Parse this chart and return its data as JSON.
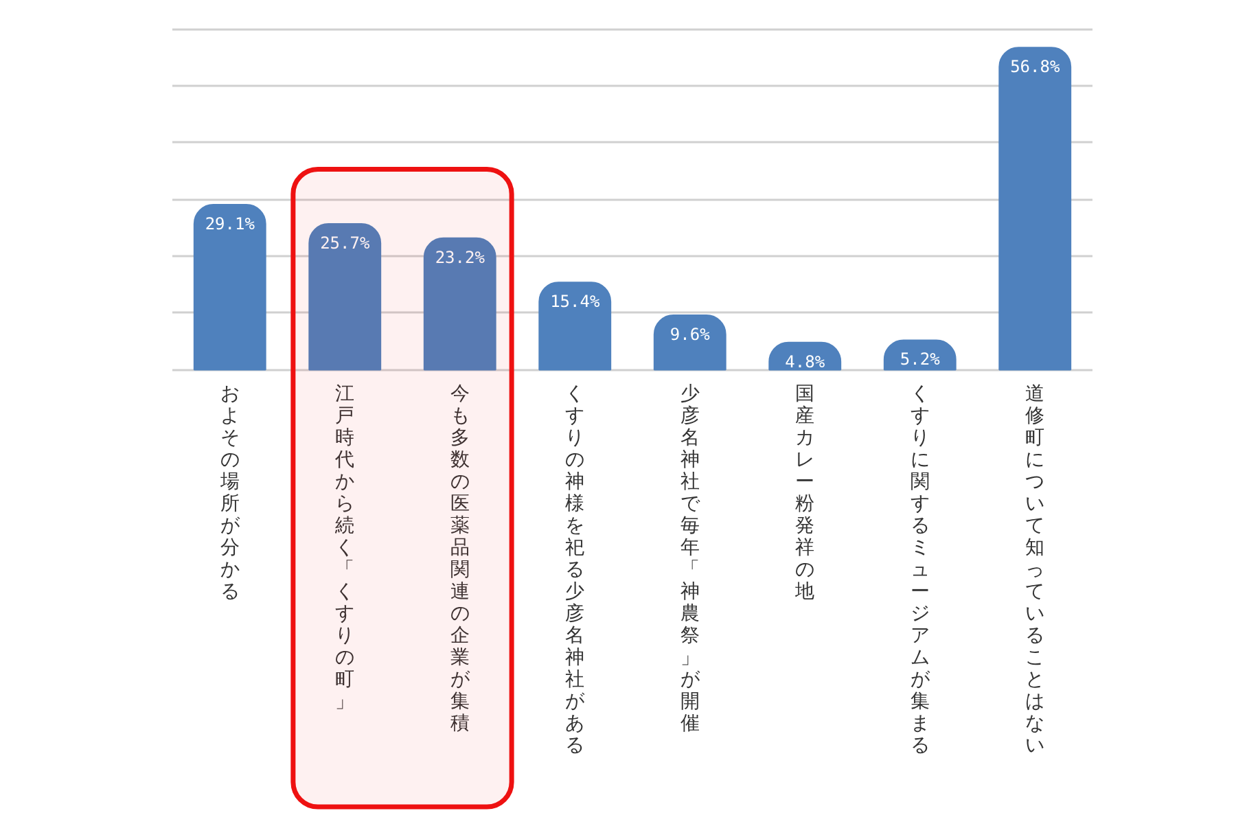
{
  "chart_data": {
    "type": "bar",
    "categories": [
      "およその場所が分かる",
      "江戸時代から続く「くすりの町」",
      "今も多数の医薬品関連の企業が集積",
      "くすりの神様を祀る少彦名神社がある",
      "少彦名神社で毎年「神農祭」が開催",
      "国産カレー粉発祥の地",
      "くすりに関するミュージアムが集まる",
      "道修町について知っていることはない"
    ],
    "values": [
      29.1,
      25.7,
      23.2,
      15.4,
      9.6,
      4.8,
      5.2,
      56.8
    ],
    "value_labels": [
      "29.1%",
      "25.7%",
      "23.2%",
      "15.4%",
      "9.6%",
      "4.8%",
      "5.2%",
      "56.8%"
    ],
    "color": "#4f81bd",
    "grid": "y",
    "bands": [
      {
        "axis": "x",
        "from": "江戸時代から続く「くすりの町」",
        "to": "今も多数の医薬品関連の企業が集積",
        "color": "#ee1111"
      }
    ]
  }
}
